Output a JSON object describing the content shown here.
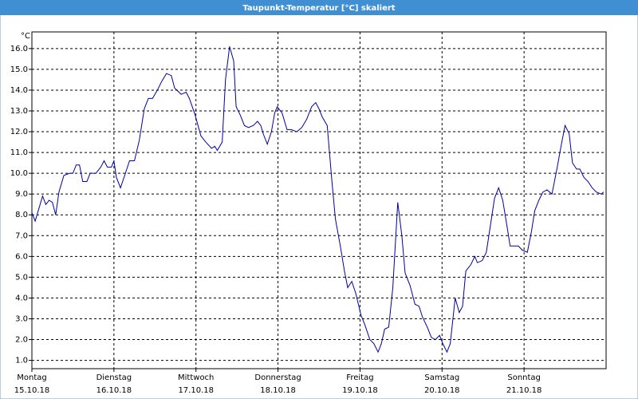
{
  "chart_data": {
    "type": "line",
    "title": "Taupunkt-Temperatur [°C] skaliert",
    "y_unit": "°C",
    "x": [
      0,
      0.04,
      0.13,
      0.17,
      0.21,
      0.25,
      0.29,
      0.33,
      0.39,
      0.46,
      0.5,
      0.54,
      0.58,
      0.62,
      0.67,
      0.71,
      0.78,
      0.84,
      0.88,
      0.92,
      0.97,
      1.0,
      1.03,
      1.08,
      1.14,
      1.19,
      1.25,
      1.31,
      1.37,
      1.42,
      1.47,
      1.53,
      1.58,
      1.64,
      1.7,
      1.74,
      1.82,
      1.88,
      1.92,
      1.99,
      2.06,
      2.12,
      2.19,
      2.23,
      2.26,
      2.32,
      2.36,
      2.41,
      2.46,
      2.49,
      2.54,
      2.59,
      2.64,
      2.7,
      2.75,
      2.79,
      2.82,
      2.87,
      2.92,
      2.96,
      2.99,
      3.05,
      3.11,
      3.16,
      3.23,
      3.29,
      3.35,
      3.41,
      3.46,
      3.5,
      3.54,
      3.6,
      3.66,
      3.7,
      3.76,
      3.81,
      3.85,
      3.9,
      3.95,
      4.01,
      4.06,
      4.12,
      4.17,
      4.22,
      4.26,
      4.3,
      4.35,
      4.4,
      4.46,
      4.51,
      4.55,
      4.61,
      4.67,
      4.72,
      4.76,
      4.82,
      4.87,
      4.92,
      4.97,
      5.01,
      5.06,
      5.1,
      5.16,
      5.21,
      5.25,
      5.29,
      5.35,
      5.4,
      5.43,
      5.49,
      5.54,
      5.59,
      5.64,
      5.69,
      5.74,
      5.79,
      5.83,
      5.89,
      5.93,
      5.98,
      6.04,
      6.09,
      6.13,
      6.18,
      6.23,
      6.28,
      6.34,
      6.4,
      6.46,
      6.5,
      6.55,
      6.59,
      6.64,
      6.68,
      6.73,
      6.78,
      6.83,
      6.88,
      6.94,
      6.97
    ],
    "series": [
      {
        "name": "Taupunkt-Temperatur",
        "color": "#0000a0",
        "values": [
          8.1,
          7.7,
          8.9,
          8.5,
          8.7,
          8.6,
          8.0,
          9.1,
          9.9,
          10.0,
          10.0,
          10.4,
          10.4,
          9.6,
          9.6,
          10.0,
          10.0,
          10.3,
          10.6,
          10.3,
          10.3,
          10.6,
          9.8,
          9.3,
          10.0,
          10.6,
          10.6,
          11.6,
          13.1,
          13.6,
          13.6,
          14.0,
          14.4,
          14.8,
          14.7,
          14.1,
          13.8,
          13.9,
          13.6,
          12.8,
          11.8,
          11.5,
          11.2,
          11.3,
          11.1,
          11.5,
          14.5,
          16.1,
          15.4,
          13.2,
          12.8,
          12.3,
          12.2,
          12.3,
          12.5,
          12.3,
          11.9,
          11.4,
          12.0,
          12.9,
          13.2,
          12.9,
          12.1,
          12.1,
          12.0,
          12.2,
          12.6,
          13.2,
          13.4,
          13.1,
          12.7,
          12.3,
          9.5,
          7.8,
          6.5,
          5.3,
          4.5,
          4.8,
          4.2,
          3.2,
          2.7,
          2.0,
          1.8,
          1.4,
          1.8,
          2.5,
          2.6,
          4.5,
          8.6,
          7.0,
          5.2,
          4.6,
          3.7,
          3.6,
          3.1,
          2.6,
          2.1,
          2.0,
          2.2,
          1.8,
          1.4,
          1.8,
          4.0,
          3.3,
          3.6,
          5.3,
          5.6,
          6.0,
          5.7,
          5.8,
          6.2,
          7.5,
          8.8,
          9.3,
          8.7,
          7.5,
          6.5,
          6.5,
          6.5,
          6.3,
          6.2,
          7.2,
          8.2,
          8.7,
          9.1,
          9.2,
          9.0,
          10.2,
          11.5,
          12.3,
          11.9,
          10.5,
          10.2,
          10.2,
          9.8,
          9.6,
          9.3,
          9.1,
          9.0,
          9.1
        ]
      }
    ],
    "xlim": [
      0,
      7
    ],
    "xticks": [
      {
        "value": 0,
        "label": "Montag"
      },
      {
        "value": 1,
        "label": "Dienstag"
      },
      {
        "value": 2,
        "label": "Mittwoch"
      },
      {
        "value": 3,
        "label": "Donnerstag"
      },
      {
        "value": 4,
        "label": "Freitag"
      },
      {
        "value": 5,
        "label": "Samstag"
      },
      {
        "value": 6,
        "label": "Sonntag"
      }
    ],
    "xtick_dates": [
      "15.10.18",
      "16.10.18",
      "17.10.18",
      "18.10.18",
      "19.10.18",
      "20.10.18",
      "21.10.18"
    ],
    "ylim": [
      0.6,
      16.8
    ],
    "yticks": [
      {
        "value": 1,
        "label": "1.0"
      },
      {
        "value": 2,
        "label": "2.0"
      },
      {
        "value": 3,
        "label": "3.0"
      },
      {
        "value": 4,
        "label": "4.0"
      },
      {
        "value": 5,
        "label": "5.0"
      },
      {
        "value": 6,
        "label": "6.0"
      },
      {
        "value": 7,
        "label": "7.0"
      },
      {
        "value": 8,
        "label": "8.0"
      },
      {
        "value": 9,
        "label": "9.0"
      },
      {
        "value": 10,
        "label": "10.0"
      },
      {
        "value": 11,
        "label": "11.0"
      },
      {
        "value": 12,
        "label": "12.0"
      },
      {
        "value": 13,
        "label": "13.0"
      },
      {
        "value": 14,
        "label": "14.0"
      },
      {
        "value": 15,
        "label": "15.0"
      },
      {
        "value": 16,
        "label": "16.0"
      }
    ],
    "grid": true
  }
}
